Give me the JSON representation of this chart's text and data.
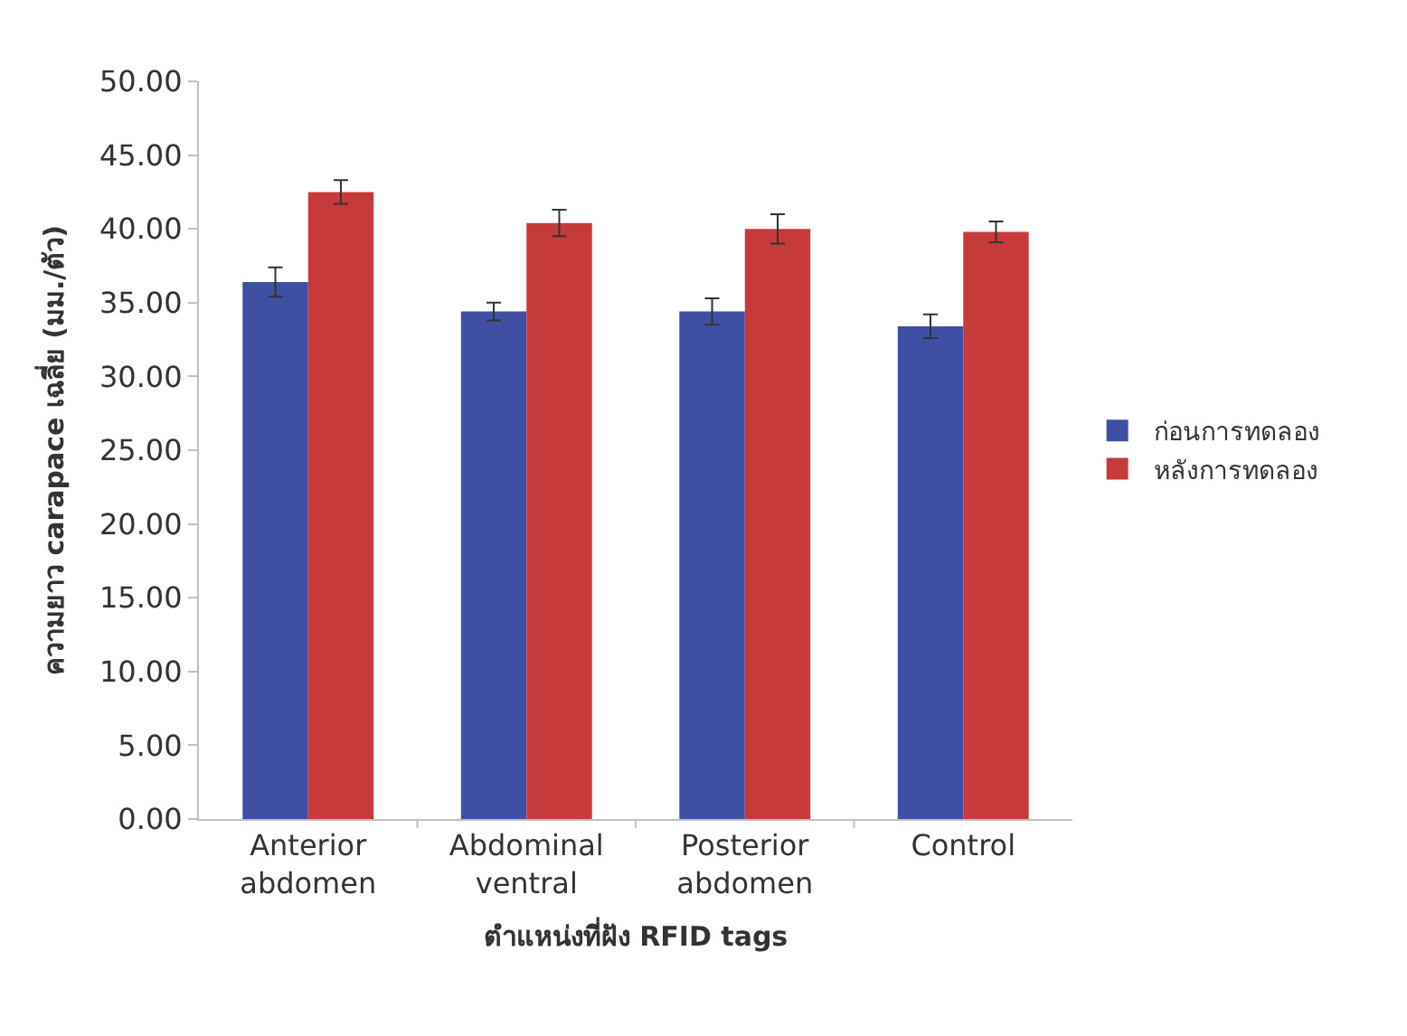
{
  "chart_data": {
    "type": "bar",
    "xlabel": "ตำแหน่งที่ฝัง RFID tags",
    "ylabel": "ความยาว carapace เฉลี่ย (มม./ตัว)",
    "categories": [
      "Anterior abdomen",
      "Abdominal ventral",
      "Posterior abdomen",
      "Control"
    ],
    "series": [
      {
        "name": "ก่อนการทดลอง",
        "color": "#3f4fa3",
        "values": [
          36.4,
          34.4,
          34.4,
          33.4
        ],
        "errors": [
          1.0,
          0.6,
          0.9,
          0.8
        ]
      },
      {
        "name": "หลังการทดลอง",
        "color": "#c73a3c",
        "values": [
          42.5,
          40.4,
          40.0,
          39.8
        ],
        "errors": [
          0.8,
          0.9,
          1.0,
          0.7
        ]
      }
    ],
    "ylim": [
      0,
      50
    ],
    "yticks": [
      {
        "value": 0,
        "label": "0.00"
      },
      {
        "value": 5,
        "label": "5.00"
      },
      {
        "value": 10,
        "label": "10.00"
      },
      {
        "value": 15,
        "label": "15.00"
      },
      {
        "value": 20,
        "label": "20.00"
      },
      {
        "value": 25,
        "label": "25.00"
      },
      {
        "value": 30,
        "label": "30.00"
      },
      {
        "value": 35,
        "label": "35.00"
      },
      {
        "value": 40,
        "label": "40.00"
      },
      {
        "value": 45,
        "label": "45.00"
      },
      {
        "value": 50,
        "label": "50.00"
      }
    ],
    "legend": "right"
  }
}
